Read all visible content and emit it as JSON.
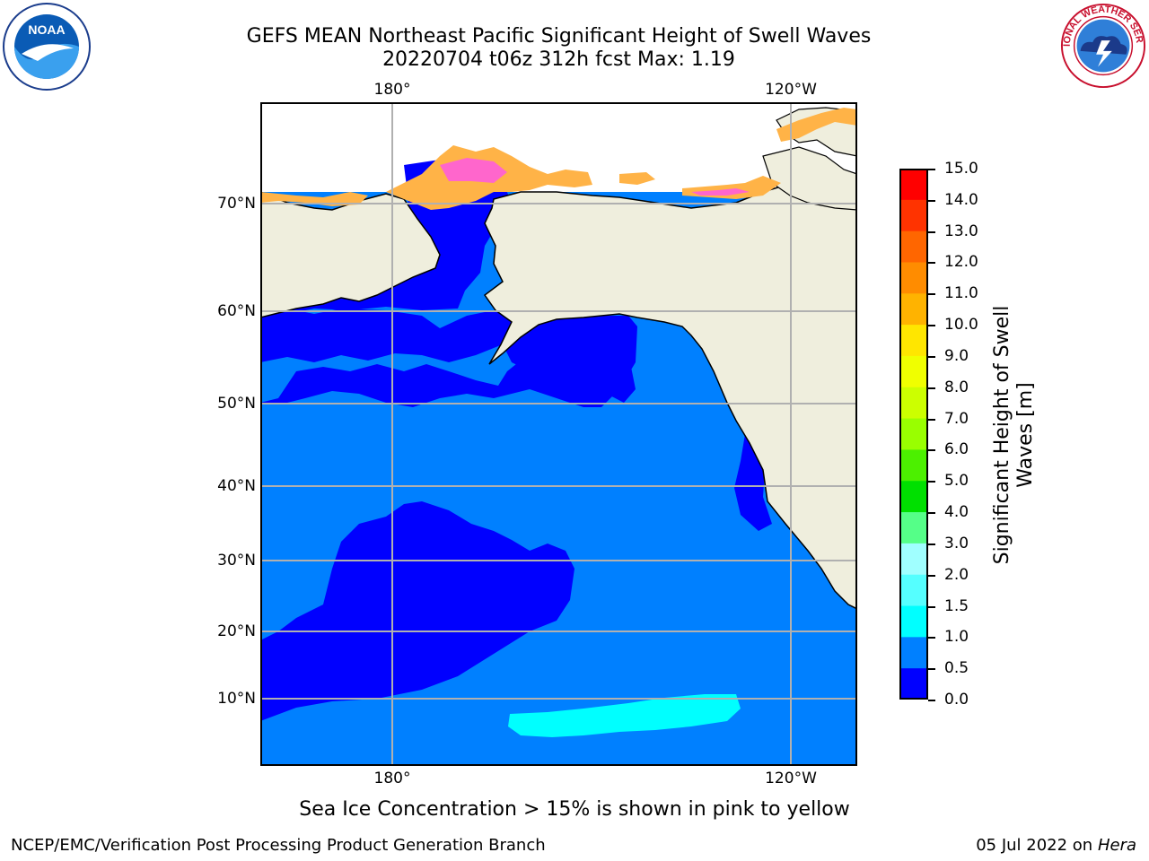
{
  "title_line1": "GEFS MEAN Northeast Pacific Significant Height of Swell Waves",
  "title_line2": "20220704 t06z 312h fcst   Max: 1.19",
  "logos": {
    "left": "noaa-logo",
    "right": "nws-logo",
    "left_text": "NOAA",
    "right_text": "NATIONAL WEATHER SERVICE"
  },
  "map": {
    "lon_labels_top": [
      "180°",
      "120°W"
    ],
    "lon_labels_bottom": [
      "180°",
      "120°W"
    ],
    "lat_labels": [
      "70°N",
      "60°N",
      "50°N",
      "40°N",
      "30°N",
      "20°N",
      "10°N"
    ],
    "colors": {
      "land": "#efeedd",
      "ocean_0_0_5": "#0000ff",
      "ocean_0_5_1_0": "#0080ff",
      "ocean_1_5_2_0": "#00ffff",
      "ice": "#ffb347",
      "ice_pink": "#ff66cc",
      "grid": "#b0b0b0"
    }
  },
  "colorbar": {
    "title_line1": "Significant Height of Swell",
    "title_line2": "Waves [m]",
    "labels": [
      "15.0",
      "14.0",
      "13.0",
      "12.0",
      "11.0",
      "10.0",
      "9.0",
      "8.0",
      "7.0",
      "6.0",
      "5.0",
      "4.0",
      "3.0",
      "2.0",
      "1.5",
      "1.0",
      "0.5",
      "0.0"
    ],
    "colors": [
      "#ff0000",
      "#ff3300",
      "#ff6600",
      "#ff8c00",
      "#ffb300",
      "#ffe600",
      "#f0ff00",
      "#ccff00",
      "#99ff00",
      "#4cf000",
      "#00e000",
      "#55ff88",
      "#a0ffff",
      "#55ffff",
      "#00ffff",
      "#0080ff",
      "#0000ff"
    ]
  },
  "caption": "Sea Ice Concentration > 15% is shown in pink to yellow",
  "footer_left": "NCEP/EMC/Verification Post Processing Product Generation Branch",
  "footer_right_date": "05 Jul 2022 on ",
  "footer_right_host": "Hera"
}
